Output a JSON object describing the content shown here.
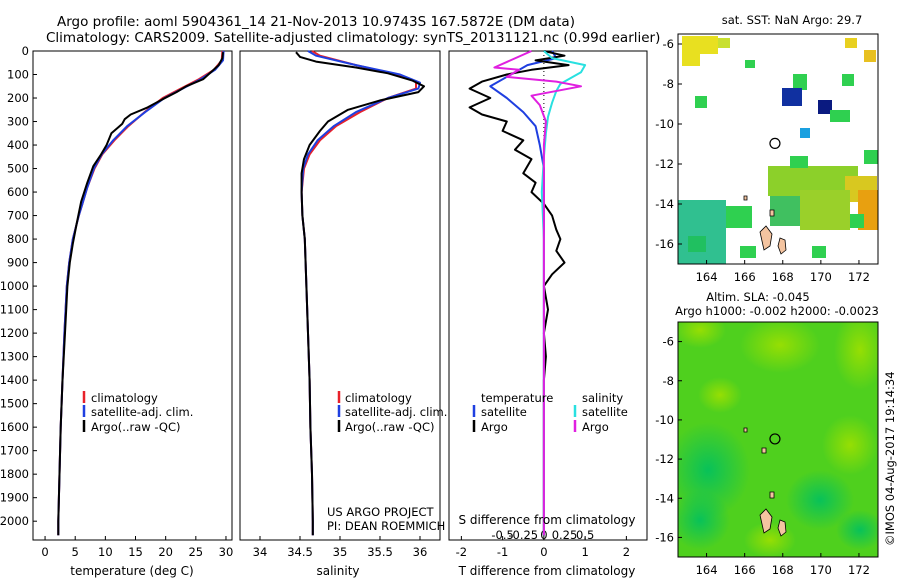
{
  "title_line1": "Argo profile: aoml 5904361_14 21-Nov-2013 10.9743S 167.5872E (DM data)",
  "title_line2": "Climatology: CARS2009. Satellite-adjusted climatology: synTS_20131121.nc (0.99d earlier)",
  "project_line1": "US ARGO PROJECT",
  "project_line2": "PI: DEAN ROEMMICH",
  "credit": "©IMOS 04-Aug-2017 19:14:34",
  "colors": {
    "climatology": "#e8212a",
    "satellite": "#1f3fe0",
    "argo": "#000000",
    "salinity_satellite": "#29e0e0",
    "salinity_argo": "#e020e0"
  },
  "chart_data": [
    {
      "type": "line",
      "id": "temperature",
      "xlabel": "temperature (deg C)",
      "ylabel": "",
      "xlim": [
        -2,
        31
      ],
      "ylim": [
        2080,
        0
      ],
      "xticks": [
        0,
        5,
        10,
        15,
        20,
        25,
        30
      ],
      "yticks": [
        0,
        100,
        200,
        300,
        400,
        500,
        600,
        700,
        800,
        900,
        1000,
        1100,
        1200,
        1300,
        1400,
        1500,
        1600,
        1700,
        1800,
        1900,
        2000
      ],
      "legend": [
        "climatology",
        "satellite-adj. clim.",
        "Argo(..raw -QC)"
      ],
      "series": [
        {
          "name": "climatology",
          "points": [
            [
              29.4,
              0
            ],
            [
              29.3,
              40
            ],
            [
              28,
              80
            ],
            [
              25.5,
              120
            ],
            [
              22.5,
              160
            ],
            [
              19.5,
              200
            ],
            [
              16.5,
              260
            ],
            [
              13.8,
              320
            ],
            [
              11.5,
              380
            ],
            [
              9.5,
              440
            ],
            [
              8.2,
              500
            ],
            [
              7,
              580
            ],
            [
              6.2,
              650
            ],
            [
              5.6,
              700
            ],
            [
              4.6,
              800
            ],
            [
              4,
              900
            ],
            [
              3.6,
              1000
            ],
            [
              3.2,
              1200
            ],
            [
              2.9,
              1400
            ],
            [
              2.6,
              1600
            ],
            [
              2.4,
              1800
            ],
            [
              2.2,
              2000
            ],
            [
              2.2,
              2060
            ]
          ]
        },
        {
          "name": "satellite-adj. clim.",
          "points": [
            [
              29.6,
              0
            ],
            [
              29.5,
              40
            ],
            [
              28.2,
              80
            ],
            [
              25.8,
              120
            ],
            [
              22.8,
              160
            ],
            [
              19.8,
              200
            ],
            [
              16.6,
              260
            ],
            [
              13.6,
              320
            ],
            [
              11.3,
              380
            ],
            [
              9.4,
              440
            ],
            [
              8.1,
              500
            ],
            [
              7,
              580
            ],
            [
              6.2,
              650
            ],
            [
              5.6,
              700
            ],
            [
              4.6,
              800
            ],
            [
              4,
              900
            ],
            [
              3.6,
              1000
            ],
            [
              3.2,
              1200
            ],
            [
              2.9,
              1400
            ],
            [
              2.6,
              1600
            ],
            [
              2.4,
              1800
            ],
            [
              2.2,
              2000
            ],
            [
              2.2,
              2060
            ]
          ]
        },
        {
          "name": "Argo(..raw -QC)",
          "points": [
            [
              29.5,
              5
            ],
            [
              29.4,
              30
            ],
            [
              28.8,
              60
            ],
            [
              27.5,
              90
            ],
            [
              26.2,
              120
            ],
            [
              23.4,
              150
            ],
            [
              21.8,
              175
            ],
            [
              19.5,
              205
            ],
            [
              17,
              240
            ],
            [
              14.2,
              270
            ],
            [
              13.2,
              290
            ],
            [
              12.8,
              310
            ],
            [
              11,
              350
            ],
            [
              10.2,
              400
            ],
            [
              9.3,
              440
            ],
            [
              8,
              490
            ],
            [
              7,
              560
            ],
            [
              6,
              640
            ],
            [
              5.2,
              740
            ],
            [
              4.6,
              820
            ],
            [
              4.1,
              900
            ],
            [
              3.7,
              1000
            ],
            [
              3.3,
              1200
            ],
            [
              2.9,
              1400
            ],
            [
              2.6,
              1600
            ],
            [
              2.4,
              1800
            ],
            [
              2.2,
              2000
            ],
            [
              2.2,
              2060
            ]
          ]
        }
      ]
    },
    {
      "type": "line",
      "id": "salinity",
      "xlabel": "salinity",
      "ylabel": "",
      "xlim": [
        33.75,
        36.25
      ],
      "ylim": [
        2080,
        0
      ],
      "xticks": [
        34,
        34.5,
        35,
        35.5,
        36
      ],
      "legend": [
        "climatology",
        "satellite-adj. clim.",
        "Argo(..raw -QC)"
      ],
      "series": [
        {
          "name": "climatology",
          "points": [
            [
              34.65,
              0
            ],
            [
              34.75,
              20
            ],
            [
              35.2,
              60
            ],
            [
              35.7,
              100
            ],
            [
              35.95,
              130
            ],
            [
              35.95,
              160
            ],
            [
              35.6,
              200
            ],
            [
              35.25,
              260
            ],
            [
              34.95,
              320
            ],
            [
              34.75,
              380
            ],
            [
              34.62,
              440
            ],
            [
              34.55,
              500
            ],
            [
              34.52,
              600
            ],
            [
              34.53,
              700
            ],
            [
              34.56,
              800
            ],
            [
              34.58,
              1000
            ],
            [
              34.6,
              1200
            ],
            [
              34.62,
              1400
            ],
            [
              34.63,
              1600
            ],
            [
              34.65,
              1800
            ],
            [
              34.66,
              2000
            ],
            [
              34.66,
              2060
            ]
          ]
        },
        {
          "name": "satellite-adj. clim.",
          "points": [
            [
              34.6,
              0
            ],
            [
              34.7,
              20
            ],
            [
              35.2,
              60
            ],
            [
              35.75,
              100
            ],
            [
              36.0,
              135
            ],
            [
              35.98,
              160
            ],
            [
              35.6,
              200
            ],
            [
              35.2,
              260
            ],
            [
              34.92,
              320
            ],
            [
              34.72,
              380
            ],
            [
              34.6,
              440
            ],
            [
              34.54,
              500
            ],
            [
              34.52,
              600
            ],
            [
              34.53,
              700
            ],
            [
              34.56,
              800
            ],
            [
              34.58,
              1000
            ],
            [
              34.6,
              1200
            ],
            [
              34.62,
              1400
            ],
            [
              34.63,
              1600
            ],
            [
              34.65,
              1800
            ],
            [
              34.66,
              2000
            ],
            [
              34.66,
              2060
            ]
          ]
        },
        {
          "name": "Argo(..raw -QC)",
          "points": [
            [
              34.45,
              5
            ],
            [
              34.5,
              25
            ],
            [
              34.7,
              45
            ],
            [
              35.2,
              70
            ],
            [
              35.6,
              95
            ],
            [
              35.9,
              125
            ],
            [
              36.05,
              150
            ],
            [
              35.98,
              175
            ],
            [
              35.5,
              210
            ],
            [
              35.1,
              250
            ],
            [
              34.85,
              300
            ],
            [
              34.75,
              340
            ],
            [
              34.62,
              400
            ],
            [
              34.55,
              460
            ],
            [
              34.52,
              520
            ],
            [
              34.52,
              600
            ],
            [
              34.53,
              700
            ],
            [
              34.56,
              800
            ],
            [
              34.58,
              1000
            ],
            [
              34.6,
              1200
            ],
            [
              34.62,
              1400
            ],
            [
              34.63,
              1600
            ],
            [
              34.65,
              1800
            ],
            [
              34.66,
              2000
            ],
            [
              34.66,
              2060
            ]
          ]
        }
      ]
    },
    {
      "type": "line",
      "id": "difference",
      "xlabel": "T difference from climatology",
      "xlabel_top": "S difference from climatology",
      "xlim": [
        -2.3,
        2.5
      ],
      "ylim": [
        2080,
        0
      ],
      "xticks": [
        -2,
        -1,
        0,
        1,
        2
      ],
      "xticklabels": [
        "-2",
        "-1",
        "0",
        "1",
        "2"
      ],
      "xticks_top": [
        -1,
        -0.5,
        0,
        0.5,
        1
      ],
      "xticklabels_top": [
        "-0.5",
        "-0.25",
        "0",
        "0.25",
        "0.5"
      ],
      "legend": [
        "temperature",
        "satellite",
        "Argo",
        "salinity",
        "satellite",
        "Argo"
      ],
      "series": [
        {
          "name": "temperature satellite",
          "points": [
            [
              0.2,
              0
            ],
            [
              0.3,
              30
            ],
            [
              -0.4,
              60
            ],
            [
              -0.7,
              90
            ],
            [
              -1.3,
              150
            ],
            [
              -0.9,
              200
            ],
            [
              -0.5,
              260
            ],
            [
              -0.2,
              320
            ],
            [
              -0.1,
              400
            ],
            [
              0,
              500
            ],
            [
              0,
              700
            ],
            [
              0,
              1000
            ],
            [
              0,
              2060
            ]
          ]
        },
        {
          "name": "temperature Argo",
          "points": [
            [
              0,
              0
            ],
            [
              0.5,
              20
            ],
            [
              -0.2,
              40
            ],
            [
              0.6,
              60
            ],
            [
              -0.3,
              80
            ],
            [
              -0.9,
              100
            ],
            [
              -1.5,
              130
            ],
            [
              -1.8,
              160
            ],
            [
              -1.3,
              200
            ],
            [
              -1.8,
              240
            ],
            [
              -1.5,
              270
            ],
            [
              -0.9,
              300
            ],
            [
              -1.0,
              340
            ],
            [
              -0.5,
              380
            ],
            [
              -0.7,
              420
            ],
            [
              -0.3,
              460
            ],
            [
              -0.5,
              520
            ],
            [
              -0.2,
              560
            ],
            [
              -0.3,
              600
            ],
            [
              0,
              650
            ],
            [
              0.2,
              700
            ],
            [
              0.3,
              760
            ],
            [
              0.4,
              800
            ],
            [
              0.3,
              850
            ],
            [
              0.5,
              900
            ],
            [
              0.2,
              950
            ],
            [
              0,
              1000
            ],
            [
              0.1,
              1100
            ],
            [
              0,
              1200
            ],
            [
              0.05,
              1300
            ],
            [
              0,
              1400
            ],
            [
              0,
              1600
            ],
            [
              0,
              2060
            ]
          ]
        },
        {
          "name": "salinity satellite",
          "points": [
            [
              0,
              0
            ],
            [
              0.2,
              30
            ],
            [
              1.0,
              60
            ],
            [
              0.9,
              90
            ],
            [
              0.4,
              140
            ],
            [
              0.3,
              170
            ],
            [
              0.2,
              220
            ],
            [
              0.1,
              280
            ],
            [
              0.05,
              350
            ],
            [
              0.0,
              450
            ],
            [
              -0.05,
              600
            ],
            [
              0,
              800
            ],
            [
              0,
              1000
            ],
            [
              0,
              2060
            ]
          ]
        },
        {
          "name": "salinity Argo",
          "points": [
            [
              -0.3,
              0
            ],
            [
              -1.2,
              70
            ],
            [
              -0.6,
              80
            ],
            [
              -0.9,
              110
            ],
            [
              0.3,
              130
            ],
            [
              0.9,
              150
            ],
            [
              -0.3,
              190
            ],
            [
              -0.1,
              230
            ],
            [
              0.05,
              300
            ],
            [
              0,
              400
            ],
            [
              0,
              600
            ],
            [
              0,
              1000
            ],
            [
              0,
              2060
            ]
          ]
        }
      ]
    },
    {
      "type": "heatmap",
      "id": "sst_map",
      "title": "sat. SST: NaN Argo: 29.7",
      "xlim": [
        162.5,
        173
      ],
      "ylim": [
        -17,
        -5.5
      ],
      "xticks": [
        164,
        166,
        168,
        170,
        172
      ],
      "yticks": [
        -6,
        -8,
        -10,
        -12,
        -14,
        -16
      ],
      "marker": [
        167.59,
        -10.97
      ]
    },
    {
      "type": "heatmap",
      "id": "sla_map",
      "title": "Altim. SLA: -0.045",
      "subtitle": "Argo h1000: -0.002 h2000: -0.0023",
      "xlim": [
        162.5,
        173
      ],
      "ylim": [
        -17,
        -5
      ],
      "xticks": [
        164,
        166,
        168,
        170,
        172
      ],
      "yticks": [
        -6,
        -8,
        -10,
        -12,
        -14,
        -16
      ],
      "marker": [
        167.59,
        -10.97
      ]
    }
  ]
}
